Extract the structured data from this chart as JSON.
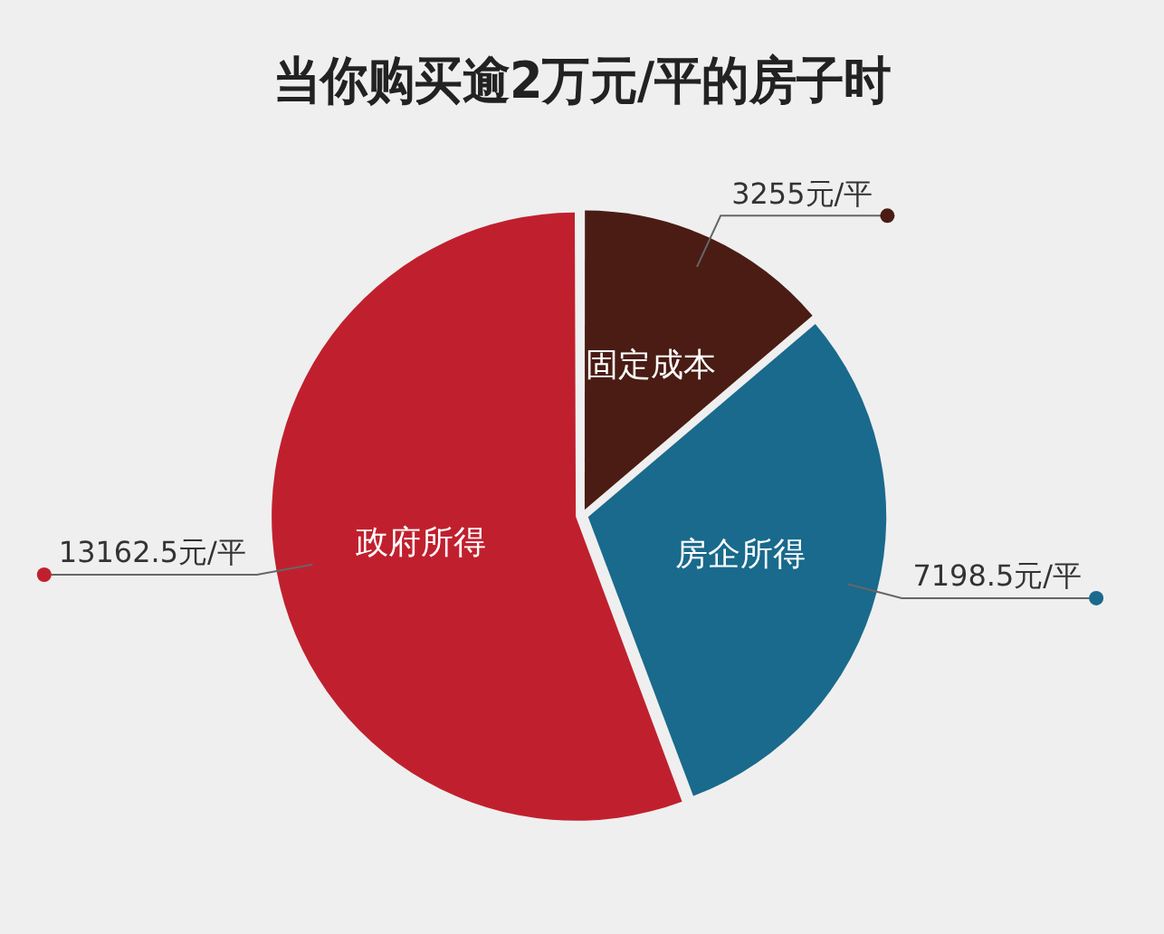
{
  "chart_data": {
    "type": "pie",
    "title": "当你购买逾2万元/平的房子时",
    "categories": [
      "固定成本",
      "房企所得",
      "政府所得"
    ],
    "values": [
      3255,
      7198.5,
      13162.5
    ],
    "colors": [
      "#4a1c14",
      "#196a8c",
      "#c0202e"
    ],
    "value_labels": [
      "3255元/平",
      "7198.5元/平",
      "13162.5元/平"
    ],
    "legend": false
  }
}
